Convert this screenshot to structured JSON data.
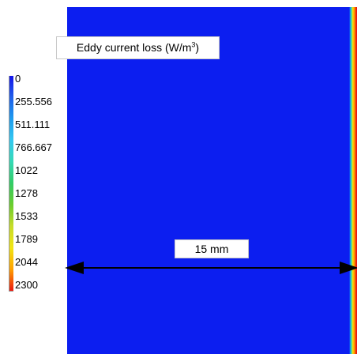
{
  "plot": {
    "title_main": "Eddy current loss (W/m",
    "title_sup": "3",
    "title_end": ")"
  },
  "legend": {
    "labels": [
      "0",
      "255.556",
      "511.111",
      "766.667",
      "1022",
      "1278",
      "1533",
      "1789",
      "2044",
      "2300"
    ],
    "colors": [
      "#1414ea",
      "#1e8cee",
      "#34c8f0",
      "#35d9b5",
      "#33cc66",
      "#6acd2e",
      "#c7dc29",
      "#f2e514",
      "#ffa000",
      "#ea1a10"
    ]
  },
  "dimension": {
    "label": "15 mm"
  },
  "colors": {
    "field": "#0c1ef0",
    "arrow": "#000000"
  }
}
